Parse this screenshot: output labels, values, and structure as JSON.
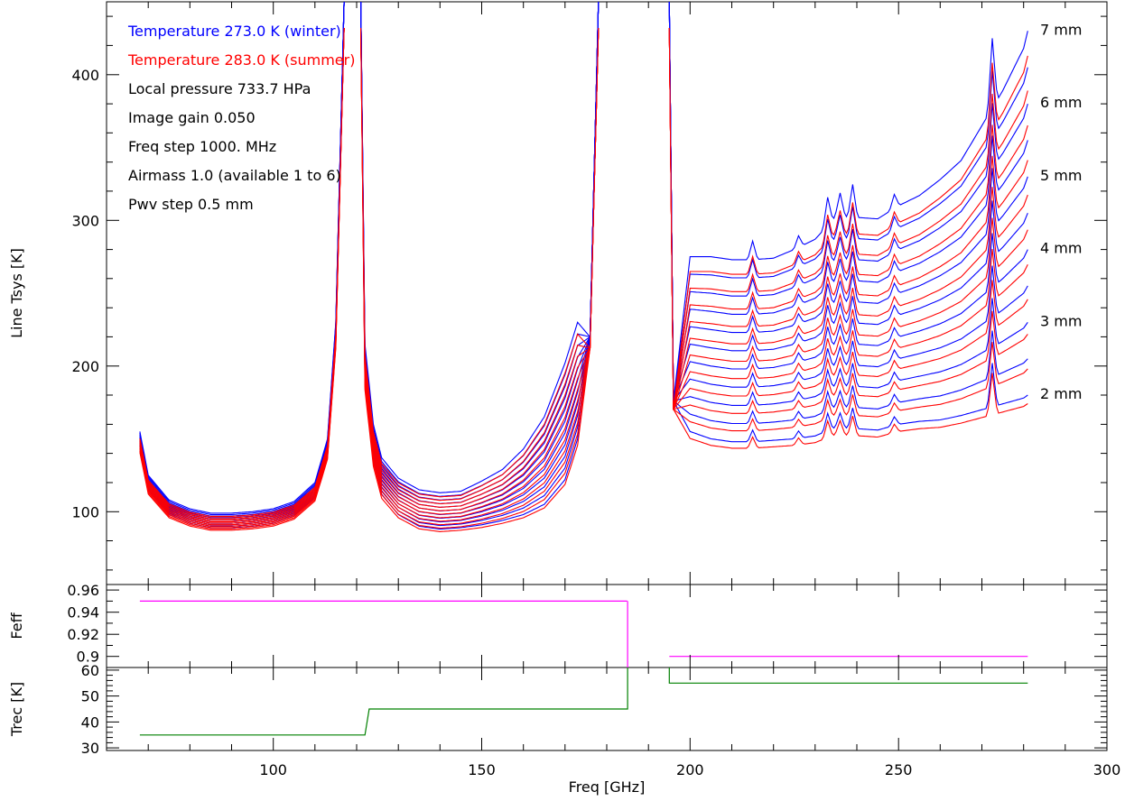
{
  "annotations": {
    "temp_winter": "Temperature 273.0 K (winter)",
    "temp_summer": "Temperature 283.0 K (summer)",
    "pressure": "Local pressure 733.7 HPa",
    "gain": "Image gain 0.050",
    "freq_step": "Freq step 1000. MHz",
    "airmass": "Airmass 1.0 (available 1 to 6)",
    "pwv_step": "Pwv step 0.5 mm"
  },
  "colors": {
    "winter": "#0000ff",
    "summer": "#ff0000",
    "feff": "#ff00ff",
    "trec": "#008000",
    "axis": "#000000"
  },
  "chart_data": [
    {
      "type": "line",
      "panel": "tsys",
      "xlabel": "Freq [GHz]",
      "ylabel": "Line Tsys [K]",
      "xlim": [
        60,
        300
      ],
      "ylim": [
        50,
        450
      ],
      "x_ticks": [
        100,
        150,
        200,
        250,
        300
      ],
      "y_ticks": [
        100,
        200,
        300,
        400
      ],
      "grid": false,
      "legend": "top-left text annotations",
      "pwv_labels": [
        "2 mm",
        "3 mm",
        "4 mm",
        "5 mm",
        "6 mm",
        "7 mm"
      ],
      "pwv_values": [
        2,
        2.5,
        3,
        3.5,
        4,
        4.5,
        5,
        5.5,
        6,
        6.5,
        7
      ],
      "curve_model": {
        "x_range": [
          68,
          281
        ],
        "band_low": {
          "x": [
            68,
            70,
            75,
            80,
            85,
            90,
            95,
            100,
            105,
            110,
            113,
            115,
            117
          ],
          "base_y": [
            145,
            115,
            98,
            92,
            89,
            89,
            90,
            92,
            97,
            110,
            140,
            220,
            450
          ],
          "per_mm_y": [
            2.0,
            2.0,
            2.0,
            2.0,
            2.0,
            2.0,
            2.0,
            2.0,
            2.0,
            2.0,
            2.0,
            2.0,
            0
          ]
        },
        "band_mid": {
          "x": [
            121,
            122,
            124,
            126,
            130,
            135,
            140,
            145,
            150,
            155,
            160,
            165,
            170,
            173,
            176,
            178
          ],
          "base_y": [
            450,
            190,
            135,
            112,
            98,
            90,
            88,
            89,
            91,
            94,
            98,
            105,
            122,
            150,
            220,
            450
          ],
          "per_mm_y": [
            0,
            5,
            5,
            5,
            5,
            5,
            5,
            5,
            6,
            7,
            9,
            12,
            16,
            16,
            0,
            0
          ]
        },
        "band_high": {
          "x": [
            195,
            196,
            200,
            205,
            210,
            215,
            220,
            225,
            230,
            235,
            240,
            245,
            250,
            255,
            260,
            265,
            270,
            275,
            280,
            281
          ],
          "base_y": [
            450,
            176,
            155,
            150,
            148,
            148,
            149,
            150,
            152,
            158,
            157,
            156,
            160,
            162,
            163,
            166,
            170,
            174,
            178,
            180
          ],
          "per_mm_y": [
            0,
            0,
            24,
            25,
            25,
            25,
            25,
            26,
            27,
            29,
            29,
            29,
            30,
            31,
            33,
            35,
            39,
            43,
            48,
            50
          ]
        },
        "summer_scale": 0.955
      },
      "spikes": [
        {
          "x": 215,
          "height": 8
        },
        {
          "x": 226,
          "height": 5
        },
        {
          "x": 233,
          "height": 12
        },
        {
          "x": 236,
          "height": 10
        },
        {
          "x": 239,
          "height": 14
        },
        {
          "x": 249,
          "height": 6
        },
        {
          "x": 272.5,
          "height": 30
        }
      ]
    },
    {
      "type": "line",
      "panel": "feff",
      "ylabel": "Feff",
      "ylim": [
        0.89,
        0.965
      ],
      "y_ticks": [
        0.9,
        0.92,
        0.94,
        0.96
      ],
      "series": [
        {
          "x": [
            68,
            184.9
          ],
          "y": [
            0.95,
            0.95
          ]
        },
        {
          "x": [
            185,
            185
          ],
          "y": [
            0.95,
            0.89
          ]
        },
        {
          "x": [
            195,
            281
          ],
          "y": [
            0.9,
            0.9
          ]
        }
      ]
    },
    {
      "type": "line",
      "panel": "trec",
      "ylabel": "Trec [K]",
      "ylim": [
        29,
        61
      ],
      "y_ticks": [
        30,
        40,
        50,
        60
      ],
      "series": [
        {
          "x": [
            68,
            122,
            122,
            123,
            185,
            185
          ],
          "y": [
            35,
            35,
            35,
            45,
            45,
            61
          ]
        },
        {
          "x": [
            195,
            195,
            281
          ],
          "y": [
            61,
            55,
            55
          ]
        }
      ]
    }
  ]
}
